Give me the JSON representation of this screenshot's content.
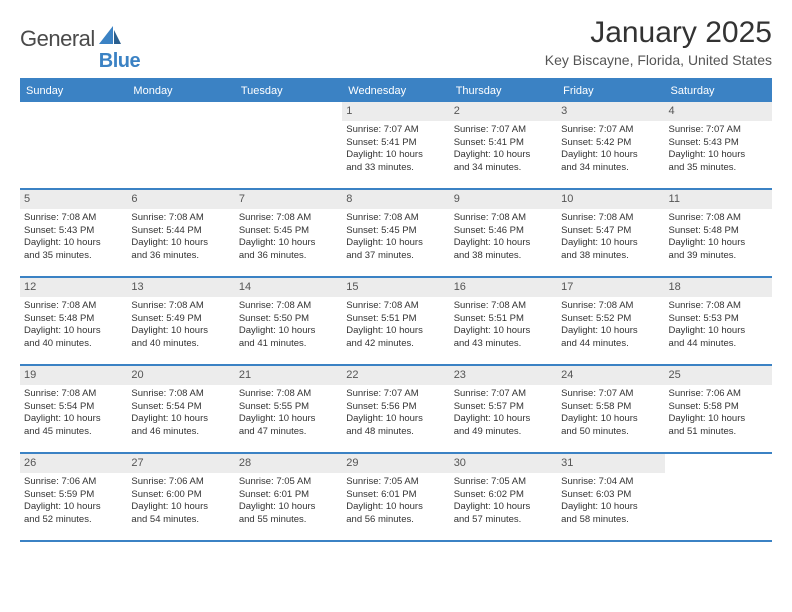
{
  "brand": {
    "name_part1": "General",
    "name_part2": "Blue"
  },
  "title": "January 2025",
  "location": "Key Biscayne, Florida, United States",
  "colors": {
    "header_bar": "#3b82c4",
    "day_num_bg": "#ececec",
    "text": "#333333",
    "brand_gray": "#4a4a4a",
    "brand_blue": "#3b82c4"
  },
  "weekdays": [
    "Sunday",
    "Monday",
    "Tuesday",
    "Wednesday",
    "Thursday",
    "Friday",
    "Saturday"
  ],
  "weeks": [
    [
      {
        "empty": true
      },
      {
        "empty": true
      },
      {
        "empty": true
      },
      {
        "day": "1",
        "sunrise": "Sunrise: 7:07 AM",
        "sunset": "Sunset: 5:41 PM",
        "daylight1": "Daylight: 10 hours",
        "daylight2": "and 33 minutes."
      },
      {
        "day": "2",
        "sunrise": "Sunrise: 7:07 AM",
        "sunset": "Sunset: 5:41 PM",
        "daylight1": "Daylight: 10 hours",
        "daylight2": "and 34 minutes."
      },
      {
        "day": "3",
        "sunrise": "Sunrise: 7:07 AM",
        "sunset": "Sunset: 5:42 PM",
        "daylight1": "Daylight: 10 hours",
        "daylight2": "and 34 minutes."
      },
      {
        "day": "4",
        "sunrise": "Sunrise: 7:07 AM",
        "sunset": "Sunset: 5:43 PM",
        "daylight1": "Daylight: 10 hours",
        "daylight2": "and 35 minutes."
      }
    ],
    [
      {
        "day": "5",
        "sunrise": "Sunrise: 7:08 AM",
        "sunset": "Sunset: 5:43 PM",
        "daylight1": "Daylight: 10 hours",
        "daylight2": "and 35 minutes."
      },
      {
        "day": "6",
        "sunrise": "Sunrise: 7:08 AM",
        "sunset": "Sunset: 5:44 PM",
        "daylight1": "Daylight: 10 hours",
        "daylight2": "and 36 minutes."
      },
      {
        "day": "7",
        "sunrise": "Sunrise: 7:08 AM",
        "sunset": "Sunset: 5:45 PM",
        "daylight1": "Daylight: 10 hours",
        "daylight2": "and 36 minutes."
      },
      {
        "day": "8",
        "sunrise": "Sunrise: 7:08 AM",
        "sunset": "Sunset: 5:45 PM",
        "daylight1": "Daylight: 10 hours",
        "daylight2": "and 37 minutes."
      },
      {
        "day": "9",
        "sunrise": "Sunrise: 7:08 AM",
        "sunset": "Sunset: 5:46 PM",
        "daylight1": "Daylight: 10 hours",
        "daylight2": "and 38 minutes."
      },
      {
        "day": "10",
        "sunrise": "Sunrise: 7:08 AM",
        "sunset": "Sunset: 5:47 PM",
        "daylight1": "Daylight: 10 hours",
        "daylight2": "and 38 minutes."
      },
      {
        "day": "11",
        "sunrise": "Sunrise: 7:08 AM",
        "sunset": "Sunset: 5:48 PM",
        "daylight1": "Daylight: 10 hours",
        "daylight2": "and 39 minutes."
      }
    ],
    [
      {
        "day": "12",
        "sunrise": "Sunrise: 7:08 AM",
        "sunset": "Sunset: 5:48 PM",
        "daylight1": "Daylight: 10 hours",
        "daylight2": "and 40 minutes."
      },
      {
        "day": "13",
        "sunrise": "Sunrise: 7:08 AM",
        "sunset": "Sunset: 5:49 PM",
        "daylight1": "Daylight: 10 hours",
        "daylight2": "and 40 minutes."
      },
      {
        "day": "14",
        "sunrise": "Sunrise: 7:08 AM",
        "sunset": "Sunset: 5:50 PM",
        "daylight1": "Daylight: 10 hours",
        "daylight2": "and 41 minutes."
      },
      {
        "day": "15",
        "sunrise": "Sunrise: 7:08 AM",
        "sunset": "Sunset: 5:51 PM",
        "daylight1": "Daylight: 10 hours",
        "daylight2": "and 42 minutes."
      },
      {
        "day": "16",
        "sunrise": "Sunrise: 7:08 AM",
        "sunset": "Sunset: 5:51 PM",
        "daylight1": "Daylight: 10 hours",
        "daylight2": "and 43 minutes."
      },
      {
        "day": "17",
        "sunrise": "Sunrise: 7:08 AM",
        "sunset": "Sunset: 5:52 PM",
        "daylight1": "Daylight: 10 hours",
        "daylight2": "and 44 minutes."
      },
      {
        "day": "18",
        "sunrise": "Sunrise: 7:08 AM",
        "sunset": "Sunset: 5:53 PM",
        "daylight1": "Daylight: 10 hours",
        "daylight2": "and 44 minutes."
      }
    ],
    [
      {
        "day": "19",
        "sunrise": "Sunrise: 7:08 AM",
        "sunset": "Sunset: 5:54 PM",
        "daylight1": "Daylight: 10 hours",
        "daylight2": "and 45 minutes."
      },
      {
        "day": "20",
        "sunrise": "Sunrise: 7:08 AM",
        "sunset": "Sunset: 5:54 PM",
        "daylight1": "Daylight: 10 hours",
        "daylight2": "and 46 minutes."
      },
      {
        "day": "21",
        "sunrise": "Sunrise: 7:08 AM",
        "sunset": "Sunset: 5:55 PM",
        "daylight1": "Daylight: 10 hours",
        "daylight2": "and 47 minutes."
      },
      {
        "day": "22",
        "sunrise": "Sunrise: 7:07 AM",
        "sunset": "Sunset: 5:56 PM",
        "daylight1": "Daylight: 10 hours",
        "daylight2": "and 48 minutes."
      },
      {
        "day": "23",
        "sunrise": "Sunrise: 7:07 AM",
        "sunset": "Sunset: 5:57 PM",
        "daylight1": "Daylight: 10 hours",
        "daylight2": "and 49 minutes."
      },
      {
        "day": "24",
        "sunrise": "Sunrise: 7:07 AM",
        "sunset": "Sunset: 5:58 PM",
        "daylight1": "Daylight: 10 hours",
        "daylight2": "and 50 minutes."
      },
      {
        "day": "25",
        "sunrise": "Sunrise: 7:06 AM",
        "sunset": "Sunset: 5:58 PM",
        "daylight1": "Daylight: 10 hours",
        "daylight2": "and 51 minutes."
      }
    ],
    [
      {
        "day": "26",
        "sunrise": "Sunrise: 7:06 AM",
        "sunset": "Sunset: 5:59 PM",
        "daylight1": "Daylight: 10 hours",
        "daylight2": "and 52 minutes."
      },
      {
        "day": "27",
        "sunrise": "Sunrise: 7:06 AM",
        "sunset": "Sunset: 6:00 PM",
        "daylight1": "Daylight: 10 hours",
        "daylight2": "and 54 minutes."
      },
      {
        "day": "28",
        "sunrise": "Sunrise: 7:05 AM",
        "sunset": "Sunset: 6:01 PM",
        "daylight1": "Daylight: 10 hours",
        "daylight2": "and 55 minutes."
      },
      {
        "day": "29",
        "sunrise": "Sunrise: 7:05 AM",
        "sunset": "Sunset: 6:01 PM",
        "daylight1": "Daylight: 10 hours",
        "daylight2": "and 56 minutes."
      },
      {
        "day": "30",
        "sunrise": "Sunrise: 7:05 AM",
        "sunset": "Sunset: 6:02 PM",
        "daylight1": "Daylight: 10 hours",
        "daylight2": "and 57 minutes."
      },
      {
        "day": "31",
        "sunrise": "Sunrise: 7:04 AM",
        "sunset": "Sunset: 6:03 PM",
        "daylight1": "Daylight: 10 hours",
        "daylight2": "and 58 minutes."
      },
      {
        "empty": true
      }
    ]
  ]
}
